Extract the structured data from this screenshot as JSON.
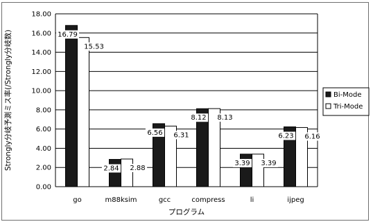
{
  "chart_data": {
    "type": "bar",
    "title": "",
    "xlabel": "プログラム",
    "ylabel": "Strongly分岐予測ミス率(/Strongly分岐数)",
    "categories": [
      "go",
      "m88ksim",
      "gcc",
      "compress",
      "li",
      "ijpeg"
    ],
    "series": [
      {
        "name": "Bi-Mode",
        "values": [
          16.79,
          2.84,
          6.56,
          8.12,
          3.39,
          6.23
        ],
        "color": "#1a1a1a"
      },
      {
        "name": "Tri-Mode",
        "values": [
          15.53,
          2.88,
          6.31,
          8.13,
          3.39,
          6.16
        ],
        "color": "#ffffff"
      }
    ],
    "data_labels": [
      [
        "16.79",
        "2.84",
        "6.56",
        "8.12",
        "3.39",
        "6.23"
      ],
      [
        "15.53",
        "2.88",
        "6.31",
        "8.13",
        "3.39",
        "6.16"
      ]
    ],
    "ylim": [
      0,
      18
    ],
    "yticks": [
      "0.00",
      "2.00",
      "4.00",
      "6.00",
      "8.00",
      "10.00",
      "12.00",
      "14.00",
      "16.00",
      "18.00"
    ],
    "grid": true,
    "legend_position": "right"
  }
}
